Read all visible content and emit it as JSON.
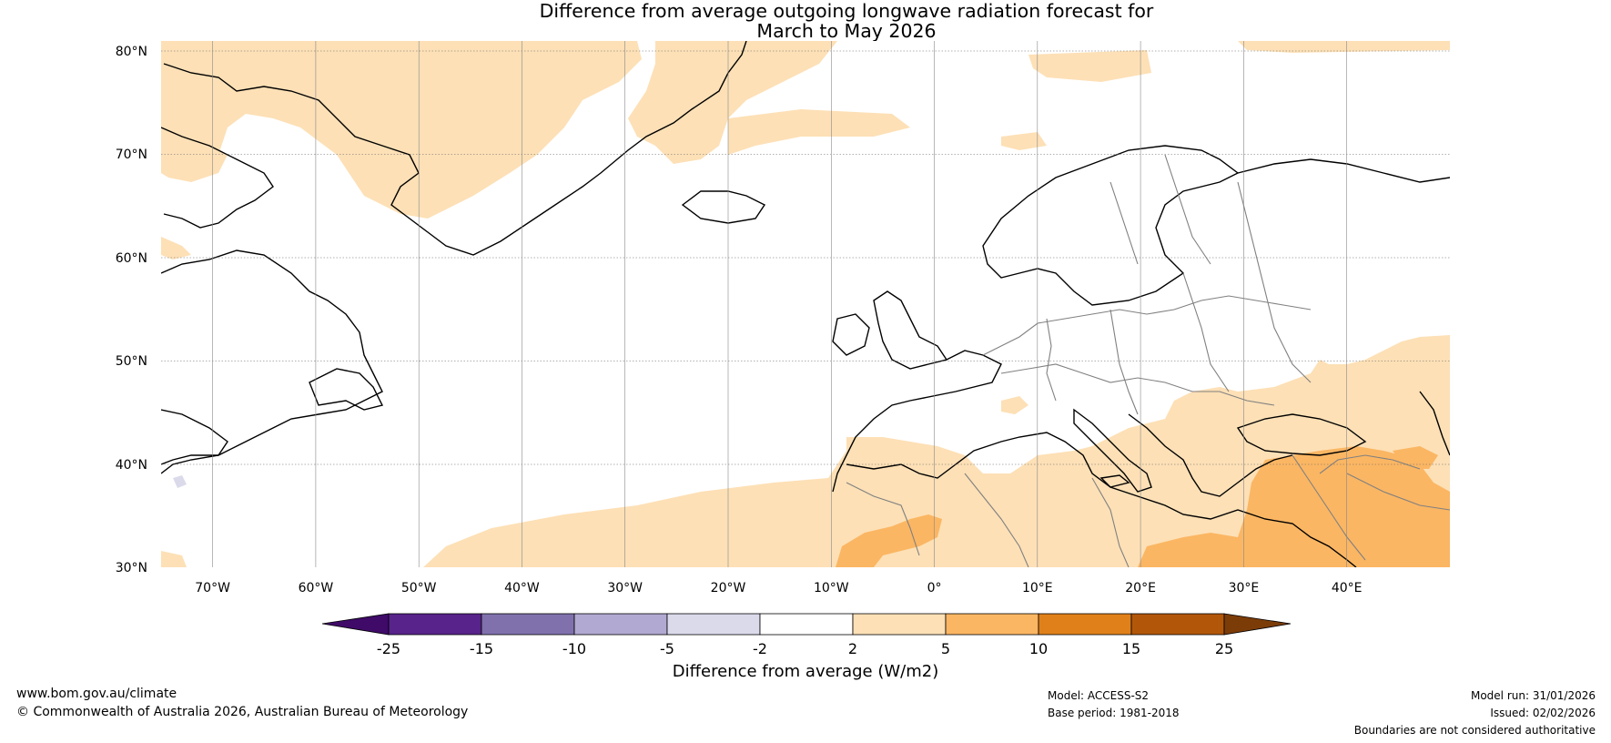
{
  "title": {
    "line1": "Difference from average outgoing longwave radiation forecast for",
    "line2": "March to May 2026"
  },
  "map": {
    "latitude_labels": [
      "80°N",
      "70°N",
      "60°N",
      "50°N",
      "40°N",
      "30°N"
    ],
    "longitude_labels": [
      "70°W",
      "60°W",
      "50°W",
      "40°W",
      "30°W",
      "20°W",
      "10°W",
      "0°",
      "10°E",
      "20°E",
      "30°E",
      "40°E"
    ],
    "extent": {
      "lon_min": -75,
      "lon_max": 50,
      "lat_min": 30,
      "lat_max": 81
    }
  },
  "colorbar": {
    "ticks": [
      "-25",
      "-15",
      "-10",
      "-5",
      "-2",
      "2",
      "5",
      "10",
      "15",
      "25"
    ],
    "colors": [
      "#3f0a68",
      "#58238a",
      "#8071ad",
      "#b2a9d2",
      "#dadaeb",
      "#ffffff",
      "#fde0b6",
      "#fbb663",
      "#e0801a",
      "#b2570a",
      "#7c3c08"
    ],
    "label": "Difference from average (W/m2)"
  },
  "footer": {
    "url": "www.bom.gov.au/climate",
    "copyright": "© Commonwealth of Australia 2026, Australian Bureau of Meteorology",
    "model": "Model: ACCESS-S2",
    "base_period": "Base period: 1981-2018",
    "model_run": "Model run: 31/01/2026",
    "issued": "Issued: 02/02/2026",
    "disclaimer": "Boundaries are not considered authoritative"
  }
}
